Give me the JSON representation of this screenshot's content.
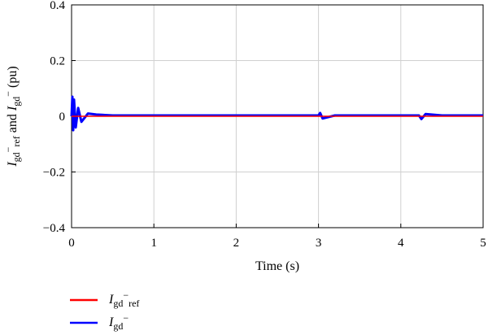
{
  "chart_data": {
    "type": "line",
    "title": "",
    "xlabel": "Time (s)",
    "ylabel": {
      "i1": "I",
      "s1a": "gd",
      "sup1": "−",
      "s1b": "ref",
      "mid": " and ",
      "i2": "I",
      "s2": "gd",
      "sup2": "−",
      "unit": " (pu)"
    },
    "xlim": [
      0,
      5
    ],
    "ylim": [
      -0.4,
      0.4
    ],
    "x_ticks": [
      "0",
      "1",
      "2",
      "3",
      "4",
      "5"
    ],
    "y_ticks": [
      "0.4",
      "0.2",
      "0",
      "−0.2",
      "−0.4"
    ],
    "grid": true,
    "legend_position": "bottom-left, outside plot",
    "series": [
      {
        "name": {
          "i": "I",
          "sub": "gd",
          "sup": "−",
          "sub2": "ref"
        },
        "color": "#ff0000",
        "x": [
          0,
          5
        ],
        "y": [
          0,
          0
        ]
      },
      {
        "name": {
          "i": "I",
          "sub": "gd",
          "sup": "−"
        },
        "color": "#0000ff",
        "x": [
          0,
          0.01,
          0.02,
          0.03,
          0.05,
          0.08,
          0.12,
          0.2,
          0.3,
          0.5,
          3.0,
          3.02,
          3.05,
          3.2,
          4.22,
          4.25,
          4.3,
          4.5,
          5.0
        ],
        "y": [
          0,
          0.07,
          -0.05,
          0.06,
          -0.04,
          0.03,
          -0.02,
          0.01,
          0.006,
          0.003,
          0.003,
          0.012,
          -0.008,
          0.003,
          0.003,
          -0.01,
          0.008,
          0.003,
          0.003
        ]
      }
    ]
  }
}
